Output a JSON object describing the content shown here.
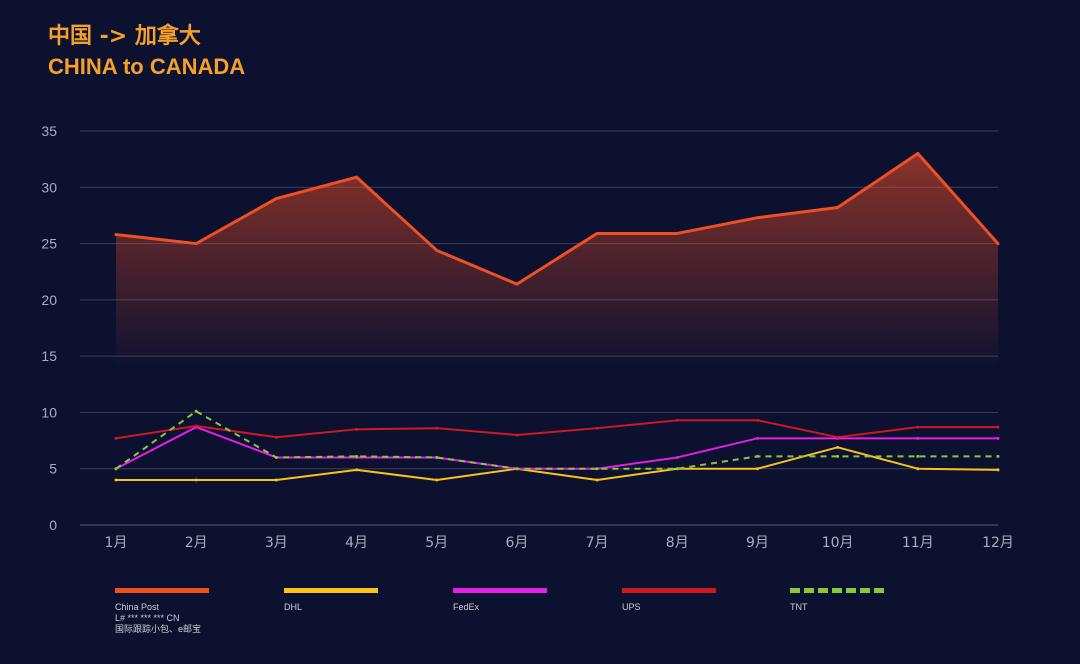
{
  "header": {
    "title_cn": "中国 -> 加拿大",
    "title_en": "CHINA to CANADA"
  },
  "chart_data": {
    "type": "line",
    "categories": [
      "1月",
      "2月",
      "3月",
      "4月",
      "5月",
      "6月",
      "7月",
      "8月",
      "9月",
      "10月",
      "11月",
      "12月"
    ],
    "ylim": [
      0,
      35
    ],
    "yticks": [
      0,
      5,
      10,
      15,
      20,
      25,
      30,
      35
    ],
    "grid": true,
    "series": [
      {
        "name": "China Post",
        "color": "#f04e23",
        "dashed": false,
        "area": true,
        "values": [
          25.8,
          25,
          29,
          30.9,
          24.4,
          21.4,
          25.9,
          25.9,
          27.3,
          28.2,
          33,
          25
        ]
      },
      {
        "name": "DHL",
        "color": "#f7c21a",
        "dashed": false,
        "area": false,
        "values": [
          4,
          4,
          4,
          4.9,
          4,
          5,
          4,
          5,
          5,
          6.9,
          5,
          4.9
        ]
      },
      {
        "name": "FedEx",
        "color": "#e41ee6",
        "dashed": false,
        "area": false,
        "values": [
          5,
          8.7,
          6,
          6,
          6,
          5,
          5,
          6,
          7.7,
          7.7,
          7.7,
          7.7
        ]
      },
      {
        "name": "UPS",
        "color": "#cf1824",
        "dashed": false,
        "area": false,
        "values": [
          7.7,
          8.8,
          7.8,
          8.5,
          8.6,
          8,
          8.6,
          9.3,
          9.3,
          7.8,
          8.7,
          8.7
        ]
      },
      {
        "name": "TNT",
        "color": "#8cc63f",
        "dashed": true,
        "area": false,
        "values": [
          5,
          10.1,
          6,
          6.1,
          6,
          5,
          5,
          5,
          6.1,
          6.1,
          6.1,
          6.1
        ]
      }
    ]
  },
  "legend": {
    "items": [
      {
        "label": "China Post",
        "sub1": "L# *** *** *** CN",
        "sub2": "国际跟踪小包、e邮宝",
        "color": "#f04e23",
        "dashed": false
      },
      {
        "label": "DHL",
        "sub1": "",
        "sub2": "",
        "color": "#f7c21a",
        "dashed": false
      },
      {
        "label": "FedEx",
        "sub1": "",
        "sub2": "",
        "color": "#e41ee6",
        "dashed": false
      },
      {
        "label": "UPS",
        "sub1": "",
        "sub2": "",
        "color": "#cf1824",
        "dashed": false
      },
      {
        "label": "TNT",
        "sub1": "",
        "sub2": "",
        "color": "#8cc63f",
        "dashed": true
      }
    ]
  }
}
